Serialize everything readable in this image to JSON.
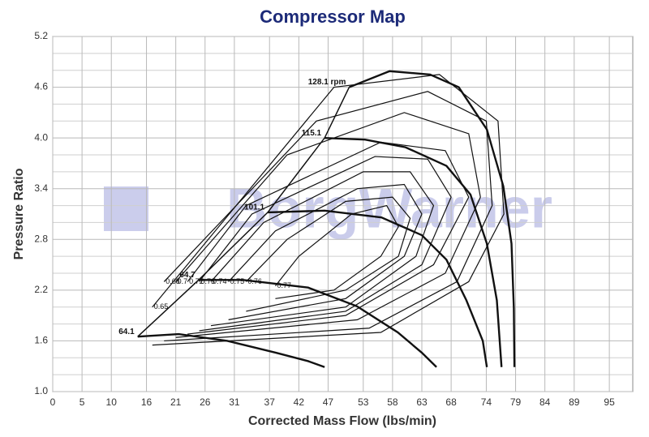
{
  "chart_data": {
    "type": "line",
    "title": "Compressor Map",
    "x_label": "Corrected Mass Flow (lbs/min)",
    "y_label": "Pressure Ratio",
    "watermark": "BorgWarner",
    "xlim": [
      0,
      99
    ],
    "ylim": [
      1,
      5.2
    ],
    "xticks": [
      0,
      5,
      10,
      16,
      21,
      26,
      31,
      37,
      42,
      47,
      53,
      58,
      63,
      68,
      74,
      79,
      84,
      89,
      95
    ],
    "yticks": [
      {
        "value": 1,
        "label": "1.0"
      },
      1.6,
      2.2,
      2.8,
      3.4,
      {
        "value": 4,
        "label": "4.0"
      },
      4.6,
      5.2
    ],
    "grid": true,
    "series": [
      {
        "name": "128.1 rpm",
        "color": "#111111",
        "x": [
          50.6,
          57.5,
          64.4,
          69.3,
          74.1,
          76.9,
          78.3,
          78.7,
          78.8
        ],
        "y": [
          4.6,
          4.79,
          4.75,
          4.6,
          4.1,
          3.43,
          2.75,
          1.99,
          1.29
        ]
      },
      {
        "name": "115.1",
        "color": "#111111",
        "x": [
          46.4,
          53.3,
          60.2,
          67.2,
          71.3,
          74.1,
          75.8,
          76.6
        ],
        "y": [
          4.0,
          3.98,
          3.89,
          3.67,
          3.33,
          2.75,
          2.08,
          1.29
        ]
      },
      {
        "name": "101.1",
        "color": "#111111",
        "x": [
          36.7,
          46.4,
          56.1,
          63.0,
          67.2,
          70.6,
          73.4,
          74.1
        ],
        "y": [
          3.12,
          3.14,
          3.06,
          2.85,
          2.56,
          2.08,
          1.6,
          1.29
        ]
      },
      {
        "name": "64.7",
        "color": "#111111",
        "x": [
          24.9,
          32.5,
          43.6,
          51.9,
          58.9,
          63.0,
          65.5
        ],
        "y": [
          2.32,
          2.32,
          2.23,
          2.01,
          1.7,
          1.46,
          1.29
        ]
      },
      {
        "name": "64.1",
        "color": "#111111",
        "x": [
          14.5,
          21.5,
          29.8,
          38.1,
          43.6,
          46.4
        ],
        "y": [
          1.65,
          1.68,
          1.6,
          1.46,
          1.36,
          1.29
        ]
      }
    ],
    "surge_line": {
      "x": [
        14.5,
        24.9,
        36.7,
        46.4,
        50.6
      ],
      "y": [
        1.65,
        2.32,
        3.12,
        4.0,
        4.6
      ]
    },
    "efficiency_contours": [
      {
        "label": "0.77",
        "x": [
          38,
          48,
          56,
          59,
          57,
          51,
          42,
          38
        ],
        "y": [
          2.1,
          2.2,
          2.6,
          2.95,
          3.2,
          3.1,
          2.6,
          2.25
        ]
      },
      {
        "label": "0.76",
        "x": [
          33,
          50,
          59,
          61,
          58,
          50,
          40,
          33
        ],
        "y": [
          1.95,
          2.2,
          2.6,
          3.05,
          3.3,
          3.25,
          2.8,
          2.3
        ]
      },
      {
        "label": "0.75",
        "x": [
          30,
          50,
          60,
          63,
          60,
          52,
          38,
          30
        ],
        "y": [
          1.85,
          2.1,
          2.6,
          3.1,
          3.45,
          3.4,
          2.9,
          2.3
        ]
      },
      {
        "label": "0.74",
        "x": [
          27,
          50,
          62,
          65,
          61,
          53,
          36,
          27
        ],
        "y": [
          1.78,
          2.0,
          2.6,
          3.2,
          3.6,
          3.6,
          3.0,
          2.3
        ]
      },
      {
        "label": "0.73",
        "x": [
          25,
          50,
          63,
          68,
          64,
          55,
          34,
          25
        ],
        "y": [
          1.72,
          1.95,
          2.5,
          3.3,
          3.75,
          3.78,
          3.1,
          2.3
        ]
      },
      {
        "label": "0.72",
        "x": [
          23,
          50,
          65,
          71,
          67,
          56,
          33,
          23
        ],
        "y": [
          1.68,
          1.9,
          2.5,
          3.3,
          3.85,
          3.95,
          3.2,
          2.3
        ]
      },
      {
        "label": "0.7",
        "x": [
          21,
          52,
          67,
          73,
          71,
          60,
          40,
          21
        ],
        "y": [
          1.64,
          1.85,
          2.4,
          3.3,
          4.05,
          4.3,
          3.8,
          2.3
        ]
      },
      {
        "label": "0.68",
        "x": [
          19,
          54,
          69,
          75,
          74,
          64,
          45,
          19
        ],
        "y": [
          1.6,
          1.75,
          2.3,
          3.2,
          4.2,
          4.55,
          4.2,
          2.3
        ]
      },
      {
        "label": "0.65",
        "x": [
          17,
          56,
          71,
          77,
          76,
          66,
          48,
          17
        ],
        "y": [
          1.55,
          1.7,
          2.3,
          3.1,
          4.2,
          4.75,
          4.6,
          2.0
        ]
      }
    ]
  }
}
